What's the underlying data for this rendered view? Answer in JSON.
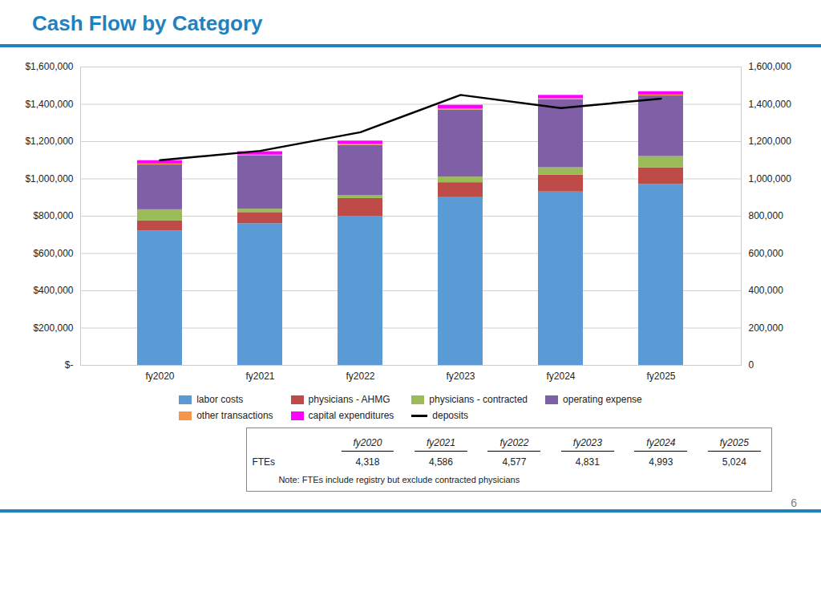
{
  "chart_data": {
    "type": "bar",
    "stacked": true,
    "title": "Cash Flow by Category",
    "title_color": "#1F82C0",
    "categories": [
      "fy2020",
      "fy2021",
      "fy2022",
      "fy2023",
      "fy2024",
      "fy2025"
    ],
    "series": [
      {
        "name": "labor costs",
        "color": "#5B9BD5",
        "values": [
          720000,
          760000,
          800000,
          900000,
          930000,
          970000
        ]
      },
      {
        "name": "physicians - AHMG",
        "color": "#BE4B48",
        "values": [
          55000,
          60000,
          95000,
          80000,
          90000,
          90000
        ]
      },
      {
        "name": "physicians - contracted",
        "color": "#9BBB59",
        "values": [
          60000,
          18000,
          15000,
          30000,
          40000,
          60000
        ]
      },
      {
        "name": "operating expense",
        "color": "#7F5FA6",
        "values": [
          240000,
          285000,
          270000,
          360000,
          365000,
          325000
        ]
      },
      {
        "name": "other transactions",
        "color": "#F79646",
        "values": [
          5000,
          5000,
          5000,
          5000,
          5000,
          5000
        ]
      },
      {
        "name": "capital expenditures",
        "color": "#FF00FF",
        "values": [
          18000,
          18000,
          18000,
          20000,
          18000,
          18000
        ]
      },
      {
        "name": "deposits",
        "type": "line",
        "axis": "y2",
        "color": "#000000",
        "values": [
          1100000,
          1150000,
          1250000,
          1450000,
          1380000,
          1430000
        ]
      }
    ],
    "ylim": [
      0,
      1600000
    ],
    "yticks": [
      {
        "value": 0,
        "label": "$-"
      },
      {
        "value": 200000,
        "label": "$200,000"
      },
      {
        "value": 400000,
        "label": "$400,000"
      },
      {
        "value": 600000,
        "label": "$600,000"
      },
      {
        "value": 800000,
        "label": "$800,000"
      },
      {
        "value": 1000000,
        "label": "$1,000,000"
      },
      {
        "value": 1200000,
        "label": "$1,200,000"
      },
      {
        "value": 1400000,
        "label": "$1,400,000"
      },
      {
        "value": 1600000,
        "label": "$1,600,000"
      }
    ],
    "y2lim": [
      0,
      1600000
    ],
    "y2ticks": [
      0,
      {
        "value": 200000,
        "label": "200,000"
      },
      {
        "value": 400000,
        "label": "400,000"
      },
      {
        "value": 600000,
        "label": "600,000"
      },
      {
        "value": 800000,
        "label": "800,000"
      },
      {
        "value": 1000000,
        "label": "1,000,000"
      },
      {
        "value": 1200000,
        "label": "1,200,000"
      },
      {
        "value": 1400000,
        "label": "1,400,000"
      },
      {
        "value": 1600000,
        "label": "1,600,000"
      }
    ],
    "grid": true,
    "legend": "bottom",
    "table": {
      "columns": [
        "fy2020",
        "fy2021",
        "fy2022",
        "fy2023",
        "fy2024",
        "fy2025"
      ],
      "rows": [
        {
          "label": "FTEs",
          "values": [
            4318,
            4586,
            4577,
            4831,
            4993,
            5024
          ],
          "value_labels": [
            "4,318",
            "4,586",
            "4,577",
            "4,831",
            "4,993",
            "5,024"
          ]
        }
      ],
      "note": "Note:  FTEs include registry but exclude contracted physicians"
    },
    "page_number": "6"
  }
}
